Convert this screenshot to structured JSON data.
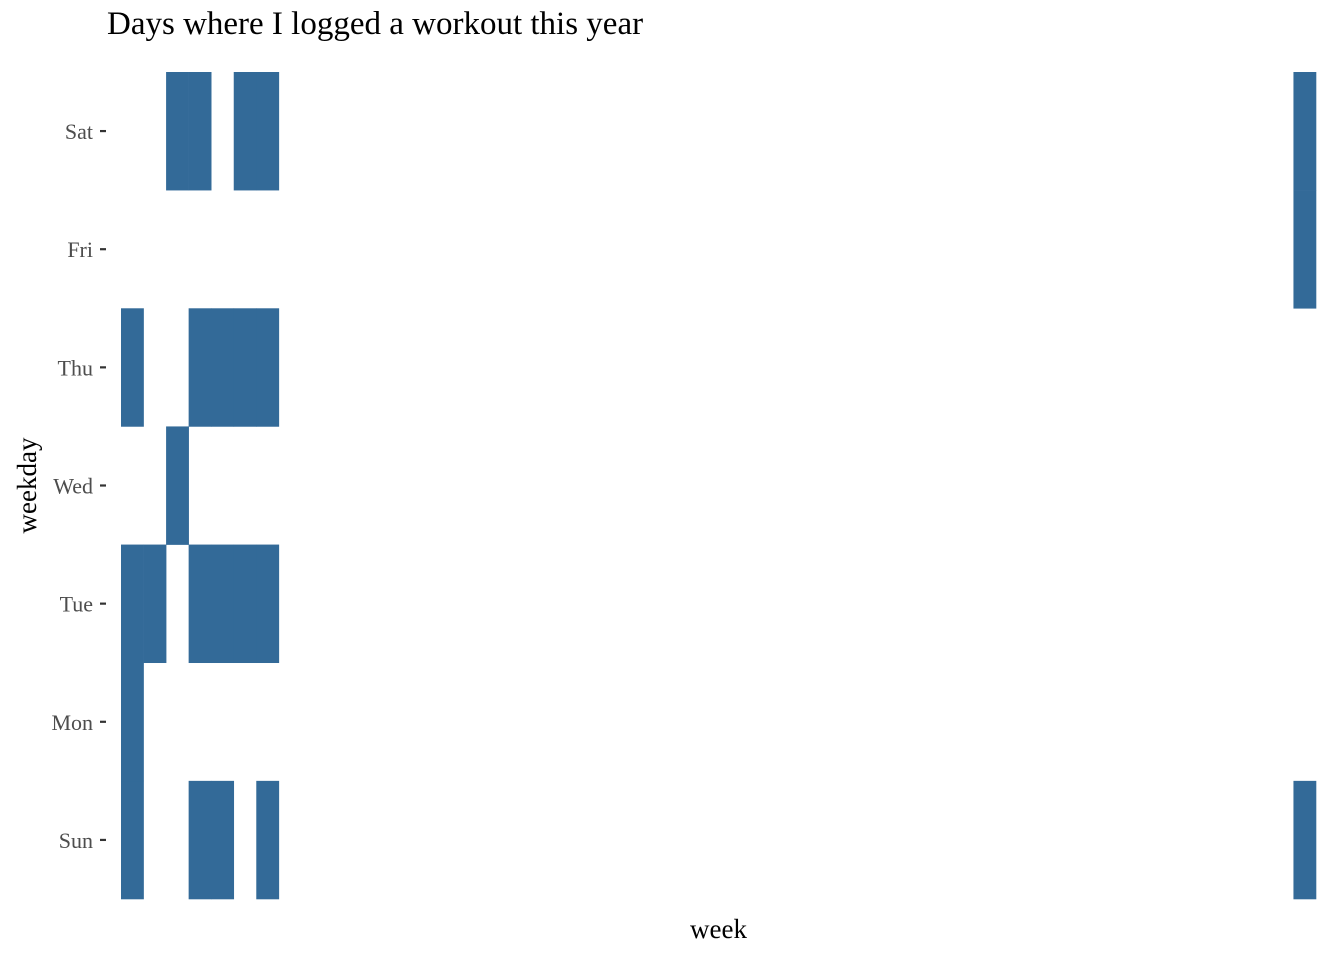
{
  "title": "Days where I logged a workout this year",
  "chart_data": {
    "type": "heatmap",
    "title": "Days where I logged a workout this year",
    "xlabel": "week",
    "ylabel": "weekday",
    "y_categories": [
      "Sun",
      "Mon",
      "Tue",
      "Wed",
      "Thu",
      "Fri",
      "Sat"
    ],
    "x_tick_labels": [],
    "xlim": [
      1,
      53
    ],
    "grid": false,
    "fill_color": "#336a98",
    "cells": [
      {
        "week": 1,
        "weekday": "Sun"
      },
      {
        "week": 1,
        "weekday": "Mon"
      },
      {
        "week": 1,
        "weekday": "Tue"
      },
      {
        "week": 1,
        "weekday": "Thu"
      },
      {
        "week": 2,
        "weekday": "Tue"
      },
      {
        "week": 3,
        "weekday": "Wed"
      },
      {
        "week": 3,
        "weekday": "Sat"
      },
      {
        "week": 4,
        "weekday": "Sun"
      },
      {
        "week": 4,
        "weekday": "Tue"
      },
      {
        "week": 4,
        "weekday": "Thu"
      },
      {
        "week": 4,
        "weekday": "Sat"
      },
      {
        "week": 5,
        "weekday": "Sun"
      },
      {
        "week": 5,
        "weekday": "Tue"
      },
      {
        "week": 5,
        "weekday": "Thu"
      },
      {
        "week": 6,
        "weekday": "Tue"
      },
      {
        "week": 6,
        "weekday": "Thu"
      },
      {
        "week": 6,
        "weekday": "Sat"
      },
      {
        "week": 7,
        "weekday": "Sun"
      },
      {
        "week": 7,
        "weekday": "Tue"
      },
      {
        "week": 7,
        "weekday": "Thu"
      },
      {
        "week": 7,
        "weekday": "Sat"
      },
      {
        "week": 53,
        "weekday": "Sun"
      },
      {
        "week": 53,
        "weekday": "Fri"
      },
      {
        "week": 53,
        "weekday": "Sat"
      }
    ]
  }
}
